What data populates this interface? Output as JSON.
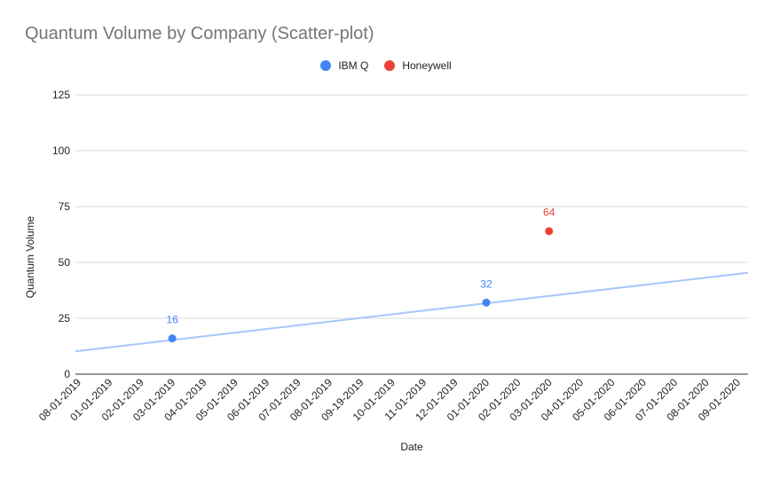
{
  "chart_data": {
    "type": "scatter",
    "title": "Quantum Volume by Company (Scatter-plot)",
    "xlabel": "Date",
    "ylabel": "Quantum Volume",
    "ylim": [
      0,
      125
    ],
    "yticks": [
      0,
      25,
      50,
      75,
      100,
      125
    ],
    "x_tick_labels": [
      "08-01-2019",
      "01-01-2019",
      "02-01-2019",
      "03-01-2019",
      "04-01-2019",
      "05-01-2019",
      "06-01-2019",
      "07-01-2019",
      "08-01-2019",
      "09-19-2019",
      "10-01-2019",
      "11-01-2019",
      "12-01-2019",
      "01-01-2020",
      "02-01-2020",
      "03-01-2020",
      "04-01-2020",
      "05-01-2020",
      "06-01-2020",
      "07-01-2020",
      "08-01-2020",
      "09-01-2020"
    ],
    "legend_position": "top",
    "grid": true,
    "series": [
      {
        "name": "IBM Q",
        "color": "#4285F4",
        "points": [
          {
            "x": "03-01-2019",
            "y": 16,
            "label": "16"
          },
          {
            "x": "01-01-2020",
            "y": 32,
            "label": "32"
          }
        ],
        "trendline": {
          "color": "#A8C7FA",
          "y_at_first_tick": 10.2,
          "y_at_last_tick": 45.4
        }
      },
      {
        "name": "Honeywell",
        "color": "#EA4335",
        "points": [
          {
            "x": "03-01-2020",
            "y": 64,
            "label": "64"
          }
        ]
      }
    ]
  }
}
